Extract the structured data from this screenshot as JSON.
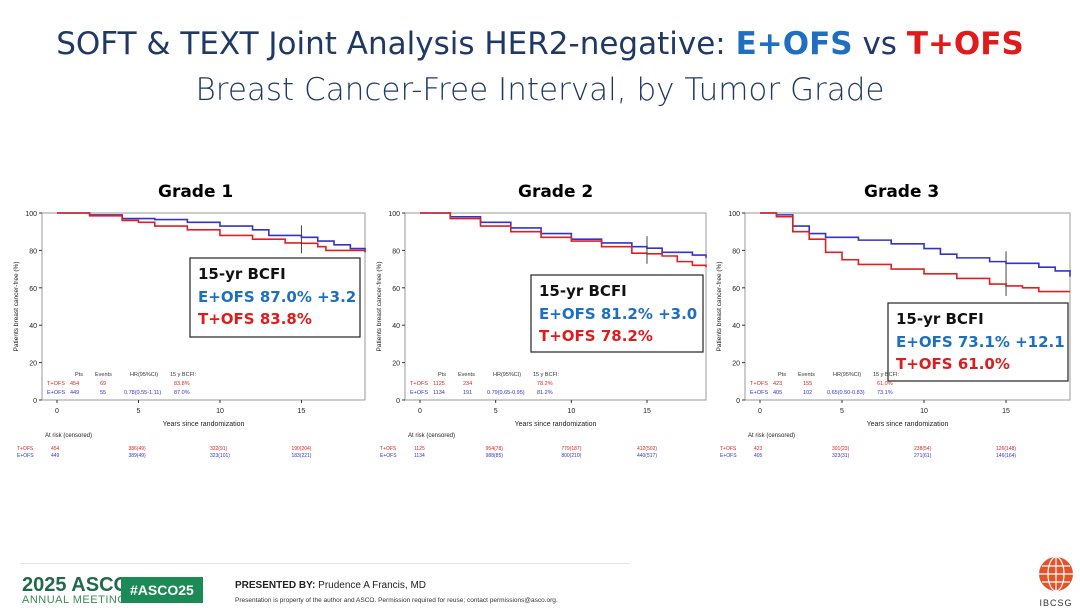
{
  "title": {
    "line1_prefix": "SOFT & TEXT Joint Analysis HER2-negative: ",
    "e": "E+OFS",
    "vs": " vs ",
    "t": "T+OFS",
    "line2": "Breast Cancer-Free Interval, by Tumor Grade"
  },
  "colors": {
    "e_series": "#3333cc",
    "t_series": "#e02020",
    "e_text": "#1f6fc0",
    "t_text": "#e01b1b"
  },
  "chart_data": [
    {
      "type": "line",
      "title": "Grade 1",
      "xlabel": "Years since randomization",
      "ylabel": "Patients breast cancer-free (%)",
      "xticks": [
        0,
        5,
        10,
        15
      ],
      "yticks": [
        0,
        20,
        40,
        60,
        80,
        100
      ],
      "xlim": [
        0,
        19
      ],
      "ylim": [
        0,
        100
      ],
      "grid": false,
      "marker_year": 15,
      "series": [
        {
          "name": "E+OFS",
          "x": [
            0,
            2,
            4,
            6,
            8,
            10,
            12,
            13,
            15,
            16,
            17,
            18,
            18.9
          ],
          "y": [
            100,
            99,
            97,
            96.5,
            95,
            93,
            91,
            88,
            87,
            85,
            83,
            81,
            79
          ]
        },
        {
          "name": "T+OFS",
          "x": [
            0,
            2,
            4,
            5,
            6,
            8,
            10,
            12,
            14,
            15,
            16,
            16.5,
            18.9
          ],
          "y": [
            100,
            98.5,
            96,
            95,
            93,
            91,
            88,
            86,
            84,
            83.8,
            82,
            80,
            79.5
          ]
        }
      ],
      "box": {
        "heading": "15-yr BCFI",
        "e_line": "E+OFS  87.0%  +3.2",
        "t_line": "T+OFS  83.8%"
      },
      "table": {
        "headers": [
          "Pts",
          "Events",
          "HR(95%CI)",
          "15 y BCFI:"
        ],
        "rows": [
          [
            "T+OFS",
            "454",
            "69",
            "",
            "83.8%"
          ],
          [
            "E+OFS",
            "449",
            "55",
            "0.78(0.55-1.11)",
            "87.0%"
          ]
        ]
      },
      "at_risk_label": "At risk (censored)",
      "at_risk": {
        "T+OFS": [
          "454",
          "386(49)",
          "322(91)",
          "190(204)"
        ],
        "E+OFS": [
          "449",
          "389(49)",
          "323(101)",
          "183(221)"
        ]
      }
    },
    {
      "type": "line",
      "title": "Grade 2",
      "xlabel": "Years since randomization",
      "ylabel": "Patients breast cancer-free (%)",
      "xticks": [
        0,
        5,
        10,
        15
      ],
      "yticks": [
        0,
        20,
        40,
        60,
        80,
        100
      ],
      "xlim": [
        0,
        19
      ],
      "ylim": [
        0,
        100
      ],
      "grid": false,
      "marker_year": 15,
      "series": [
        {
          "name": "E+OFS",
          "x": [
            0,
            2,
            4,
            6,
            8,
            10,
            12,
            14,
            15,
            16,
            18,
            18.9
          ],
          "y": [
            100,
            98,
            95,
            92,
            89,
            86,
            84,
            82,
            81.2,
            79,
            77.5,
            76
          ]
        },
        {
          "name": "T+OFS",
          "x": [
            0,
            2,
            4,
            6,
            8,
            10,
            12,
            14,
            15,
            16,
            17,
            18,
            18.9
          ],
          "y": [
            100,
            97,
            93,
            90,
            87,
            85,
            82,
            78.5,
            78.2,
            77,
            74,
            72,
            71
          ]
        }
      ],
      "box": {
        "heading": "15-yr BCFI",
        "e_line": "E+OFS  81.2%  +3.0",
        "t_line": "T+OFS  78.2%"
      },
      "table": {
        "headers": [
          "Pts",
          "Events",
          "HR(95%CI)",
          "15 y BCFI:"
        ],
        "rows": [
          [
            "T+OFS",
            "1125",
            "234",
            "",
            "78.2%"
          ],
          [
            "E+OFS",
            "1134",
            "191",
            "0.79(0.65-0.95)",
            "81.2%"
          ]
        ]
      },
      "at_risk_label": "At risk (censored)",
      "at_risk": {
        "T+OFS": [
          "1125",
          "954(78)",
          "779(187)",
          "412(502)"
        ],
        "E+OFS": [
          "1134",
          "988(85)",
          "800(210)",
          "440(517)"
        ]
      }
    },
    {
      "type": "line",
      "title": "Grade 3",
      "xlabel": "Years since randomization",
      "ylabel": "Patients breast cancer-free (%)",
      "xticks": [
        0,
        5,
        10,
        15
      ],
      "yticks": [
        0,
        20,
        40,
        60,
        80,
        100
      ],
      "xlim": [
        0,
        19
      ],
      "ylim": [
        0,
        100
      ],
      "grid": false,
      "marker_year": 15,
      "series": [
        {
          "name": "E+OFS",
          "x": [
            0,
            1,
            2,
            3,
            4,
            6,
            8,
            10,
            11,
            12,
            14,
            15,
            17,
            18,
            18.9
          ],
          "y": [
            100,
            99,
            93,
            89,
            87,
            85.5,
            83.5,
            81,
            78,
            76,
            74,
            73.1,
            71,
            69,
            66
          ]
        },
        {
          "name": "T+OFS",
          "x": [
            0,
            1,
            2,
            3,
            4,
            5,
            6,
            8,
            10,
            12,
            14,
            15,
            16,
            17,
            18.9
          ],
          "y": [
            100,
            98,
            90,
            86,
            79,
            75,
            72.5,
            70,
            67.5,
            65,
            62,
            61,
            60,
            58,
            58
          ]
        }
      ],
      "box": {
        "heading": "15-yr BCFI",
        "e_line": "E+OFS  73.1%  +12.1",
        "t_line": "T+OFS  61.0%"
      },
      "table": {
        "headers": [
          "Pts",
          "Events",
          "HR(95%CI)",
          "15 y BCFI:"
        ],
        "rows": [
          [
            "T+OFS",
            "423",
            "155",
            "",
            "61.0%"
          ],
          [
            "E+OFS",
            "405",
            "102",
            "0.65(0.50-0.83)",
            "73.1%"
          ]
        ]
      },
      "at_risk_label": "At risk (censored)",
      "at_risk": {
        "T+OFS": [
          "423",
          "301(23)",
          "238(54)",
          "126(148)"
        ],
        "E+OFS": [
          "405",
          "323(31)",
          "271(61)",
          "146(164)"
        ]
      }
    }
  ],
  "footer": {
    "meeting_year": "2025 ASCO",
    "meeting_sub": "ANNUAL MEETING",
    "hashtag": "#ASCO25",
    "presented_by_label": "PRESENTED BY:",
    "presenter": " Prudence A Francis, MD",
    "note": "Presentation is property of the author and ASCO. Permission required for reuse; contact permissions@asco.org.",
    "logo": "IBCSG"
  }
}
